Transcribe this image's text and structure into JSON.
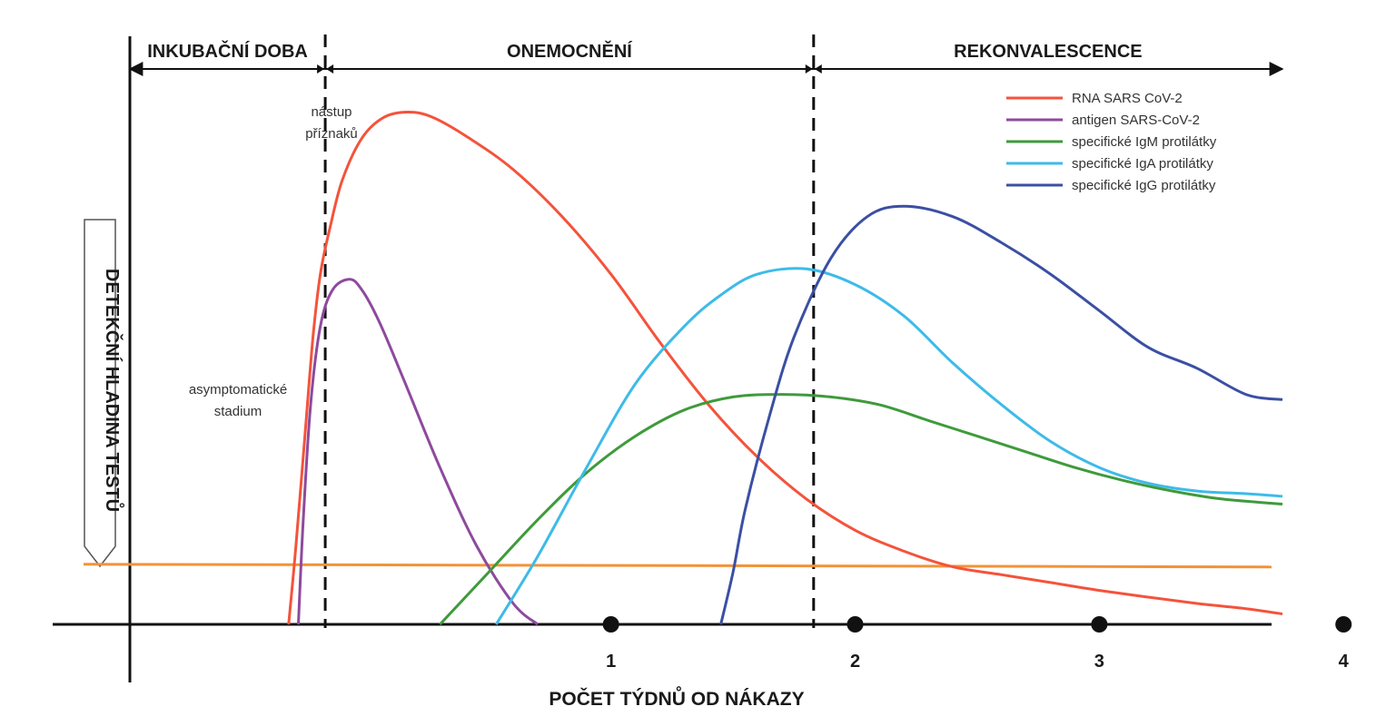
{
  "chart_data": {
    "type": "line",
    "xlabel": "POČET TÝDNŮ OD NÁKAZY",
    "ylabel": "DETEKČNÍ HLADINA TESTŮ",
    "xticks": [
      1,
      2,
      3,
      4
    ],
    "xlim": [
      -0.97,
      3.75
    ],
    "ylim": [
      0,
      1
    ],
    "grid": false,
    "legend_position": "top-right",
    "phases": [
      {
        "label": "INKUBAČNÍ DOBA",
        "start": -0.97,
        "end": -0.17
      },
      {
        "label": "ONEMOCNĚNÍ",
        "start": -0.17,
        "end": 1.83
      },
      {
        "label": "REKONVALESCENCE",
        "start": 1.83,
        "end": 3.75
      }
    ],
    "dividers": [
      -0.17,
      1.83
    ],
    "annotations": {
      "symptom_onset": [
        "nástup",
        "příznaků"
      ],
      "asymptomatic": [
        "asymptomatické",
        "stadium"
      ]
    },
    "threshold": {
      "value": 0.115,
      "color": "#f39237"
    },
    "series": [
      {
        "name": "RNA SARS CoV-2",
        "color": "#f4533b",
        "x": [
          -0.32,
          -0.29,
          -0.25,
          -0.22,
          -0.19,
          -0.15,
          -0.1,
          -0.02,
          0.07,
          0.17,
          0.27,
          0.42,
          0.6,
          0.8,
          1.0,
          1.2,
          1.4,
          1.6,
          1.8,
          2.0,
          2.2,
          2.4,
          2.6,
          2.8,
          3.0,
          3.2,
          3.4,
          3.6,
          3.75
        ],
        "y": [
          0.0,
          0.15,
          0.38,
          0.55,
          0.67,
          0.76,
          0.85,
          0.93,
          0.97,
          0.98,
          0.97,
          0.93,
          0.87,
          0.78,
          0.67,
          0.54,
          0.42,
          0.32,
          0.24,
          0.18,
          0.14,
          0.11,
          0.095,
          0.08,
          0.065,
          0.052,
          0.04,
          0.03,
          0.02
        ]
      },
      {
        "name": "antigen SARS-CoV-2",
        "color": "#8e4a9d",
        "x": [
          -0.28,
          -0.26,
          -0.23,
          -0.19,
          -0.14,
          -0.07,
          -0.02,
          0.05,
          0.15,
          0.3,
          0.45,
          0.6,
          0.7
        ],
        "y": [
          0.0,
          0.2,
          0.42,
          0.57,
          0.64,
          0.66,
          0.64,
          0.58,
          0.47,
          0.3,
          0.15,
          0.04,
          0.0
        ]
      },
      {
        "name": "specifické IgM protilátky",
        "color": "#3f9a3c",
        "x": [
          0.3,
          0.5,
          0.7,
          0.9,
          1.1,
          1.3,
          1.5,
          1.7,
          1.9,
          2.1,
          2.3,
          2.5,
          2.7,
          2.9,
          3.1,
          3.3,
          3.5,
          3.75
        ],
        "y": [
          0.0,
          0.1,
          0.2,
          0.29,
          0.36,
          0.41,
          0.435,
          0.44,
          0.435,
          0.42,
          0.39,
          0.36,
          0.33,
          0.3,
          0.275,
          0.255,
          0.24,
          0.23
        ]
      },
      {
        "name": "specifické IgA protilátky",
        "color": "#3dbbe8",
        "x": [
          0.53,
          0.7,
          0.9,
          1.1,
          1.3,
          1.45,
          1.6,
          1.8,
          2.0,
          2.2,
          2.4,
          2.6,
          2.8,
          3.0,
          3.2,
          3.4,
          3.6,
          3.75
        ],
        "y": [
          0.0,
          0.13,
          0.3,
          0.46,
          0.57,
          0.63,
          0.67,
          0.68,
          0.65,
          0.59,
          0.5,
          0.42,
          0.35,
          0.3,
          0.27,
          0.255,
          0.25,
          0.245
        ]
      },
      {
        "name": "specifické IgG protilátky",
        "color": "#3b4fa3",
        "x": [
          1.45,
          1.5,
          1.55,
          1.65,
          1.75,
          1.9,
          2.05,
          2.2,
          2.4,
          2.6,
          2.8,
          3.0,
          3.2,
          3.4,
          3.6,
          3.75
        ],
        "y": [
          0.0,
          0.1,
          0.22,
          0.4,
          0.55,
          0.7,
          0.78,
          0.8,
          0.78,
          0.73,
          0.67,
          0.6,
          0.53,
          0.49,
          0.44,
          0.43
        ]
      }
    ]
  }
}
